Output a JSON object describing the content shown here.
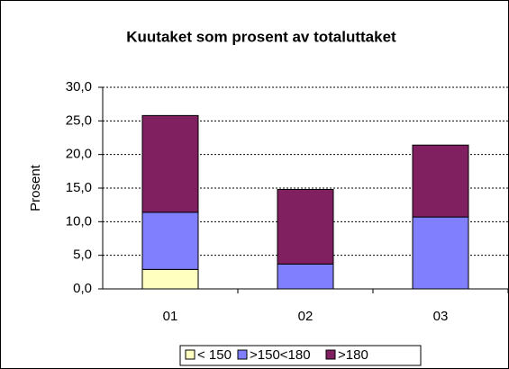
{
  "chart_data": {
    "type": "stacked_bar",
    "title": "Kuutaket som prosent av totaluttaket",
    "ylabel": "Prosent",
    "categories": [
      "01",
      "02",
      "03"
    ],
    "series": [
      {
        "name": "< 150",
        "color": "#ffffc0",
        "values": [
          2.9,
          0,
          0
        ]
      },
      {
        "name": ">150<180",
        "color": "#8080ff",
        "values": [
          8.5,
          3.7,
          10.7
        ]
      },
      {
        "name": ">180",
        "color": "#802060",
        "values": [
          14.4,
          11.1,
          10.7
        ]
      }
    ],
    "ylim": [
      0,
      30
    ],
    "yticks": [
      {
        "value": 0,
        "label": "0,0"
      },
      {
        "value": 5,
        "label": "5,0"
      },
      {
        "value": 10,
        "label": "10,0"
      },
      {
        "value": 15,
        "label": "15,0"
      },
      {
        "value": 20,
        "label": "20,0"
      },
      {
        "value": 25,
        "label": "25,0"
      },
      {
        "value": 30,
        "label": "30,0"
      }
    ],
    "grid": true,
    "legend": "bottom"
  }
}
